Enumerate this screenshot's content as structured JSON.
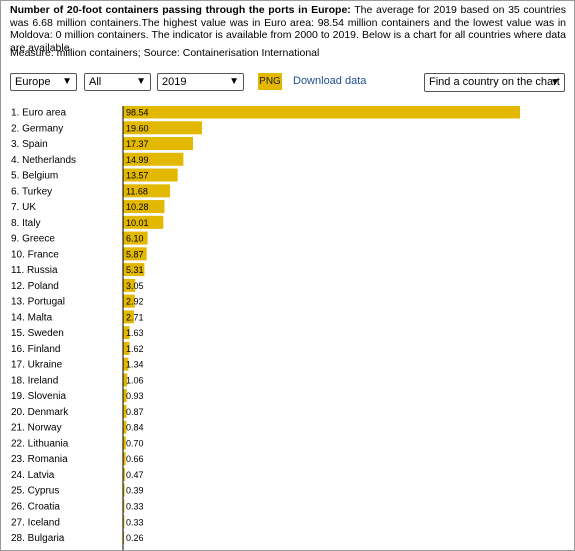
{
  "description": {
    "bold": "Number of 20-foot containers passing through the ports in Europe:",
    "text": " The average for 2019 based on 35 countries was 6.68 million containers.The highest value was in Euro area: 98.54 million containers and the lowest value was in Moldova: 0 million containers. The indicator is available from 2000 to 2019. Below is a chart for all countries where data are available."
  },
  "measure": "Measure: million containers; Source: Containerisation International",
  "controls": {
    "region": "Europe",
    "filter": "All",
    "year": "2019",
    "png_label": "PNG",
    "download_label": "Download data",
    "find_country": "Find a country on the chart"
  },
  "colors": {
    "bar": "#e2b800",
    "axis": "#000000"
  },
  "icons": {
    "dropdown": "chevron-down-icon"
  },
  "chart_data": {
    "type": "bar",
    "orientation": "horizontal",
    "categories": [
      "1. Euro area",
      "2. Germany",
      "3. Spain",
      "4. Netherlands",
      "5. Belgium",
      "6. Turkey",
      "7. UK",
      "8. Italy",
      "9. Greece",
      "10. France",
      "11. Russia",
      "12. Poland",
      "13. Portugal",
      "14. Malta",
      "15. Sweden",
      "16. Finland",
      "17. Ukraine",
      "18. Ireland",
      "19. Slovenia",
      "20. Denmark",
      "21. Norway",
      "22. Lithuania",
      "23. Romania",
      "24. Latvia",
      "25. Cyprus",
      "26. Croatia",
      "27. Iceland",
      "28. Bulgaria"
    ],
    "values": [
      98.54,
      19.6,
      17.37,
      14.99,
      13.57,
      11.68,
      10.28,
      10.01,
      6.1,
      5.87,
      5.31,
      3.05,
      2.92,
      2.71,
      1.63,
      1.62,
      1.34,
      1.06,
      0.93,
      0.87,
      0.84,
      0.7,
      0.66,
      0.47,
      0.39,
      0.33,
      0.33,
      0.26
    ],
    "labels": [
      "98.54",
      "19.60",
      "17.37",
      "14.99",
      "13.57",
      "11.68",
      "10.28",
      "10.01",
      "6.10",
      "5.87",
      "5.31",
      "3.05",
      "2.92",
      "2.71",
      "1.63",
      "1.62",
      "1.34",
      "1.06",
      "0.93",
      "0.87",
      "0.84",
      "0.70",
      "0.66",
      "0.47",
      "0.39",
      "0.33",
      "0.33",
      "0.26"
    ],
    "xlim": [
      0,
      98.54
    ],
    "grid": false,
    "legend": "none"
  }
}
